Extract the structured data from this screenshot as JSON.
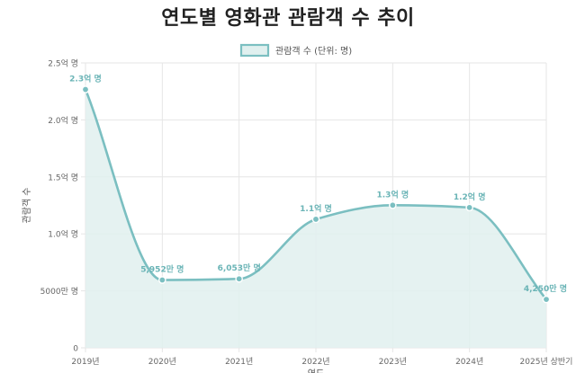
{
  "chart_data": {
    "type": "line",
    "title": "연도별 영화관 관람객 수 추이",
    "ylabel": "관람객 수",
    "xlabel": "연도",
    "categories": [
      "2019년",
      "2020년",
      "2021년",
      "2022년",
      "2023년",
      "2024년",
      "2025년 상반기"
    ],
    "series": [
      {
        "name": "관람객 수 (단위: 명)",
        "values": [
          226680000,
          59520000,
          60530000,
          112810000,
          125140000,
          123130000,
          42500000
        ],
        "labels": [
          "2.3억 명",
          "5,952만 명",
          "6,053만 명",
          "1.1억 명",
          "1.3억 명",
          "1.2억 명",
          "4,250만 명"
        ]
      }
    ],
    "ylim": [
      0,
      250000000
    ],
    "yticks": [
      0,
      50000000,
      100000000,
      150000000,
      200000000,
      250000000
    ],
    "ytick_labels": [
      "0",
      "5000만 명",
      "1.0억 명",
      "1.5억 명",
      "2.0억 명",
      "2.5억 명"
    ],
    "grid": true,
    "legend_position": "top",
    "colors": {
      "line": "#7bbfc1",
      "fill": "#e0f0ef",
      "label": "#6ab4b6",
      "grid": "#e6e6e6",
      "tick": "#666666"
    }
  }
}
